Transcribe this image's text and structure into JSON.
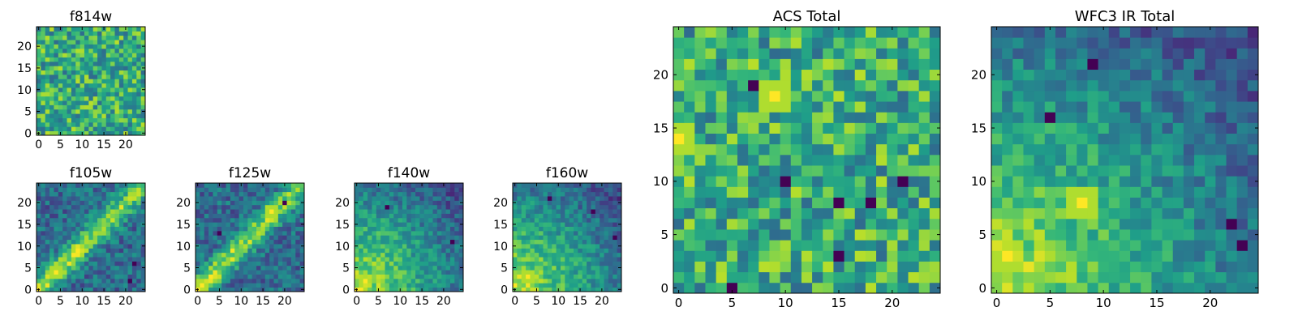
{
  "figure": {
    "colormap": "viridis",
    "colormap_stops": [
      "#440154",
      "#482878",
      "#3e4989",
      "#31688e",
      "#26828e",
      "#1f9e89",
      "#35b779",
      "#6ece58",
      "#b5de2b",
      "#fde725"
    ]
  },
  "chart_data": [
    {
      "type": "heatmap",
      "title": "f814w",
      "grid_size": 25,
      "xticks": [
        "0",
        "5",
        "10",
        "15",
        "20"
      ],
      "yticks": [
        "0",
        "5",
        "10",
        "15",
        "20"
      ],
      "pattern": "noise",
      "value_range": [
        0,
        1
      ],
      "hot_spots": [],
      "cold_spots": []
    },
    {
      "type": "heatmap",
      "title": "f105w",
      "grid_size": 25,
      "xticks": [
        "0",
        "5",
        "10",
        "15",
        "20"
      ],
      "yticks": [
        "0",
        "5",
        "10",
        "15",
        "20"
      ],
      "pattern": "diagonal_band",
      "value_range": [
        0,
        1
      ],
      "hot_spots": [
        {
          "x": 4,
          "y": 4
        },
        {
          "x": 9,
          "y": 9
        }
      ],
      "cold_spots": [
        {
          "x": 22,
          "y": 6
        },
        {
          "x": 21,
          "y": 2
        }
      ]
    },
    {
      "type": "heatmap",
      "title": "f125w",
      "grid_size": 25,
      "xticks": [
        "0",
        "5",
        "10",
        "15",
        "20"
      ],
      "yticks": [
        "0",
        "5",
        "10",
        "15",
        "20"
      ],
      "pattern": "diagonal_band",
      "value_range": [
        0,
        1
      ],
      "hot_spots": [
        {
          "x": 17,
          "y": 18
        },
        {
          "x": 1,
          "y": 1
        }
      ],
      "cold_spots": [
        {
          "x": 5,
          "y": 13
        },
        {
          "x": 20,
          "y": 20
        }
      ]
    },
    {
      "type": "heatmap",
      "title": "f140w",
      "grid_size": 25,
      "xticks": [
        "0",
        "5",
        "10",
        "15",
        "20"
      ],
      "yticks": [
        "0",
        "5",
        "10",
        "15",
        "20"
      ],
      "pattern": "corner_glow",
      "value_range": [
        0,
        1
      ],
      "hot_spots": [
        {
          "x": 2,
          "y": 2
        }
      ],
      "cold_spots": [
        {
          "x": 7,
          "y": 19
        },
        {
          "x": 22,
          "y": 11
        }
      ]
    },
    {
      "type": "heatmap",
      "title": "f160w",
      "grid_size": 25,
      "xticks": [
        "0",
        "5",
        "10",
        "15",
        "20"
      ],
      "yticks": [
        "0",
        "5",
        "10",
        "15",
        "20"
      ],
      "pattern": "corner_glow",
      "value_range": [
        0,
        1
      ],
      "hot_spots": [
        {
          "x": 3,
          "y": 3
        }
      ],
      "cold_spots": [
        {
          "x": 8,
          "y": 21
        },
        {
          "x": 18,
          "y": 18
        },
        {
          "x": 23,
          "y": 12
        }
      ]
    },
    {
      "type": "heatmap",
      "title": "ACS Total",
      "grid_size": 25,
      "xticks": [
        "0",
        "5",
        "10",
        "15",
        "20"
      ],
      "yticks": [
        "0",
        "5",
        "10",
        "15",
        "20"
      ],
      "pattern": "noise",
      "value_range": [
        0,
        1
      ],
      "hot_spots": [
        {
          "x": 9,
          "y": 18
        },
        {
          "x": 0,
          "y": 14
        }
      ],
      "cold_spots": [
        {
          "x": 7,
          "y": 19
        },
        {
          "x": 10,
          "y": 10
        },
        {
          "x": 15,
          "y": 8
        },
        {
          "x": 15,
          "y": 3
        },
        {
          "x": 5,
          "y": 0
        },
        {
          "x": 18,
          "y": 8
        },
        {
          "x": 21,
          "y": 10
        }
      ]
    },
    {
      "type": "heatmap",
      "title": "WFC3 IR Total",
      "grid_size": 25,
      "xticks": [
        "0",
        "5",
        "10",
        "15",
        "20"
      ],
      "yticks": [
        "0",
        "5",
        "10",
        "15",
        "20"
      ],
      "pattern": "corner_glow",
      "value_range": [
        0,
        1
      ],
      "hot_spots": [
        {
          "x": 1,
          "y": 3
        },
        {
          "x": 8,
          "y": 8
        }
      ],
      "cold_spots": [
        {
          "x": 9,
          "y": 21
        },
        {
          "x": 5,
          "y": 16
        },
        {
          "x": 23,
          "y": 4
        },
        {
          "x": 22,
          "y": 6
        }
      ]
    }
  ]
}
